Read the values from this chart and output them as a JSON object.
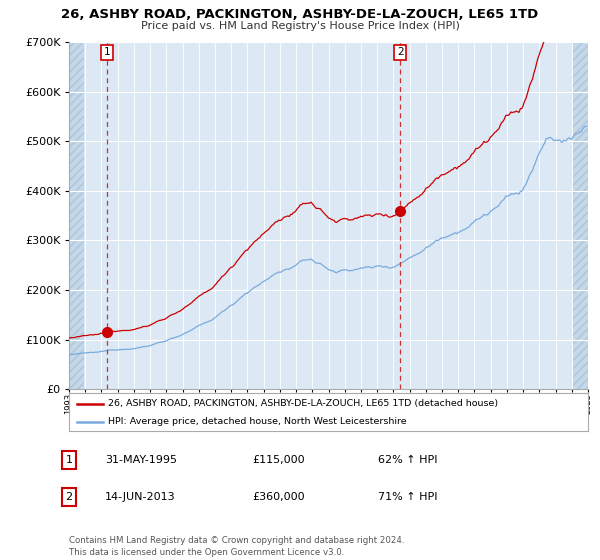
{
  "title": "26, ASHBY ROAD, PACKINGTON, ASHBY-DE-LA-ZOUCH, LE65 1TD",
  "subtitle": "Price paid vs. HM Land Registry's House Price Index (HPI)",
  "red_label": "26, ASHBY ROAD, PACKINGTON, ASHBY-DE-LA-ZOUCH, LE65 1TD (detached house)",
  "blue_label": "HPI: Average price, detached house, North West Leicestershire",
  "transaction1_date": "31-MAY-1995",
  "transaction1_price": 115000,
  "transaction1_hpi": "62% ↑ HPI",
  "transaction2_date": "14-JUN-2013",
  "transaction2_price": 360000,
  "transaction2_hpi": "71% ↑ HPI",
  "footnote": "Contains HM Land Registry data © Crown copyright and database right 2024.\nThis data is licensed under the Open Government Licence v3.0.",
  "ylim": [
    0,
    700000
  ],
  "yticks": [
    0,
    100000,
    200000,
    300000,
    400000,
    500000,
    600000,
    700000
  ],
  "plot_bg": "#dce9f5",
  "hatch_color": "#b8cfe0",
  "red_color": "#cc0000",
  "blue_color": "#7aaadd",
  "grid_color": "#ffffff",
  "marker_color": "#cc0000",
  "dashed_color": "#cc3333",
  "xmin": 1993,
  "xmax": 2025,
  "t1_year": 1995.37,
  "t1_price": 115000,
  "t2_year": 2013.45,
  "t2_price": 360000
}
